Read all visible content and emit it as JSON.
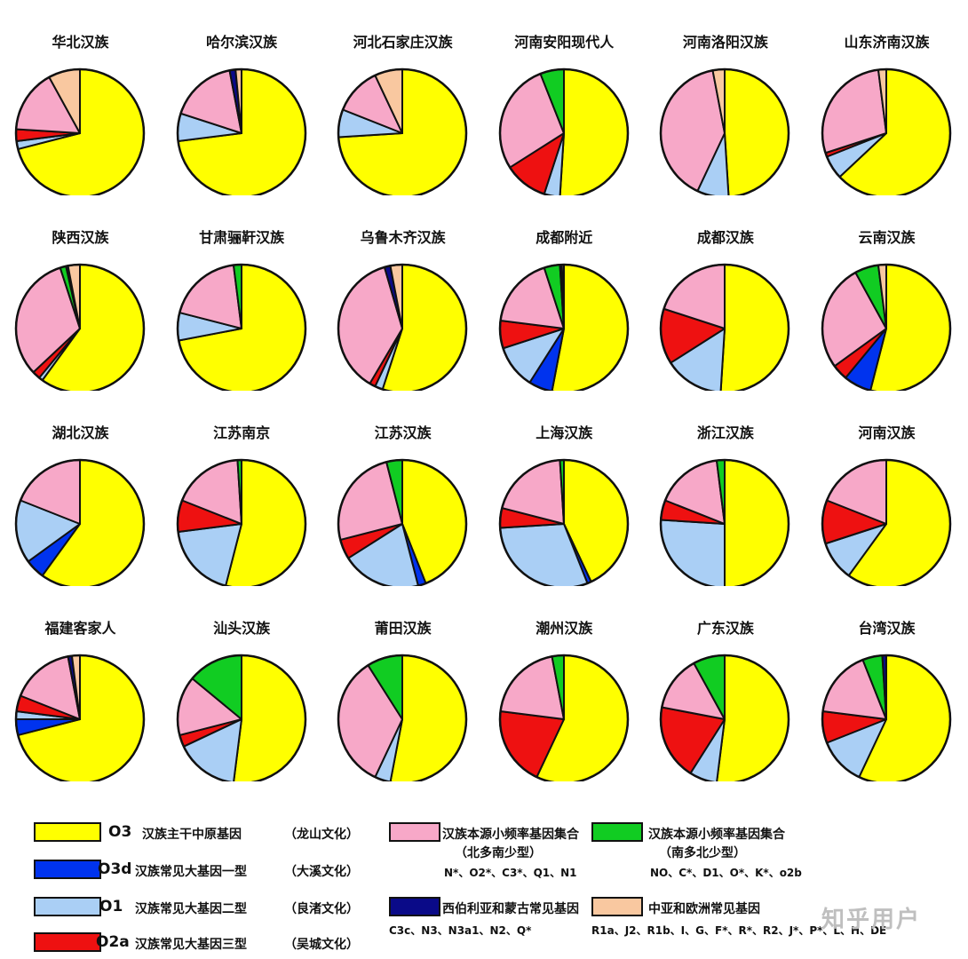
{
  "colors": {
    "O3": "#ffff00",
    "O3d": "#0033ee",
    "O1": "#aacff5",
    "O2a": "#ee1111",
    "pink": "#f7a8c8",
    "green": "#11cc22",
    "navy": "#0a0a88",
    "peach": "#f9c8a0"
  },
  "chart_data": {
    "type": "pie",
    "order": [
      "O3",
      "O3d",
      "O1",
      "O2a",
      "pink",
      "green",
      "navy",
      "peach"
    ],
    "charts": [
      {
        "title": "华北汉族",
        "values": {
          "O3": 71,
          "O1": 2,
          "O2a": 3,
          "pink": 16,
          "peach": 8
        }
      },
      {
        "title": "哈尔滨汉族",
        "values": {
          "O3": 73,
          "O1": 7,
          "pink": 17,
          "navy": 1.5,
          "peach": 1.5
        }
      },
      {
        "title": "河北石家庄汉族",
        "values": {
          "O3": 74,
          "O1": 7,
          "pink": 12,
          "peach": 7
        }
      },
      {
        "title": "河南安阳现代人",
        "values": {
          "O3": 51,
          "O1": 4,
          "O2a": 11,
          "pink": 28,
          "green": 6
        }
      },
      {
        "title": "河南洛阳汉族",
        "values": {
          "O3": 49,
          "O1": 8,
          "pink": 40,
          "peach": 3
        }
      },
      {
        "title": "山东济南汉族",
        "values": {
          "O3": 63,
          "O1": 6,
          "O2a": 1,
          "pink": 28,
          "peach": 2
        }
      },
      {
        "title": "陕西汉族",
        "values": {
          "O3": 60,
          "O1": 1,
          "O2a": 2,
          "pink": 32,
          "green": 1.5,
          "navy": 0.5,
          "peach": 3
        }
      },
      {
        "title": "甘肃骊靬汉族",
        "values": {
          "O3": 72,
          "O1": 7,
          "pink": 19,
          "green": 2
        }
      },
      {
        "title": "乌鲁木齐汉族",
        "values": {
          "O3": 55,
          "O1": 2,
          "O2a": 1.5,
          "pink": 37,
          "navy": 1.5,
          "peach": 3
        }
      },
      {
        "title": "成都附近",
        "values": {
          "O3": 53,
          "O3d": 6,
          "O1": 11,
          "O2a": 7,
          "pink": 18,
          "green": 4,
          "navy": 0.5,
          "peach": 0.5
        }
      },
      {
        "title": "成都汉族",
        "values": {
          "O3": 51,
          "O1": 15,
          "O2a": 14,
          "pink": 20
        }
      },
      {
        "title": "云南汉族",
        "values": {
          "O3": 54,
          "O3d": 7,
          "O2a": 4,
          "pink": 27,
          "green": 6,
          "peach": 2
        }
      },
      {
        "title": "湖北汉族",
        "values": {
          "O3": 60,
          "O3d": 5,
          "O1": 16,
          "pink": 19
        }
      },
      {
        "title": "江苏南京",
        "values": {
          "O3": 54,
          "O1": 19,
          "O2a": 8,
          "pink": 18,
          "green": 1
        }
      },
      {
        "title": "江苏汉族",
        "values": {
          "O3": 44,
          "O3d": 2,
          "O1": 20,
          "O2a": 5,
          "pink": 25,
          "green": 4
        }
      },
      {
        "title": "上海汉族",
        "values": {
          "O3": 43,
          "O3d": 1,
          "O1": 30,
          "O2a": 5,
          "pink": 20,
          "green": 1
        }
      },
      {
        "title": "浙江汉族",
        "values": {
          "O3": 50,
          "O1": 26,
          "O2a": 5,
          "pink": 17,
          "green": 2
        }
      },
      {
        "title": "河南汉族",
        "values": {
          "O3": 60,
          "O1": 10,
          "O2a": 11,
          "pink": 19
        }
      },
      {
        "title": "福建客家人",
        "values": {
          "O3": 71,
          "O3d": 4,
          "O1": 2,
          "O2a": 4,
          "pink": 16,
          "navy": 1,
          "peach": 2
        }
      },
      {
        "title": "汕头汉族",
        "values": {
          "O3": 52,
          "O1": 16,
          "O2a": 3,
          "pink": 15,
          "green": 14
        }
      },
      {
        "title": "莆田汉族",
        "values": {
          "O3": 53,
          "O1": 4,
          "pink": 34,
          "green": 9
        }
      },
      {
        "title": "潮州汉族",
        "values": {
          "O3": 57,
          "O2a": 20,
          "pink": 20,
          "green": 3
        }
      },
      {
        "title": "广东汉族",
        "values": {
          "O3": 52,
          "O1": 7,
          "O2a": 19,
          "pink": 14,
          "green": 8
        }
      },
      {
        "title": "台湾汉族",
        "values": {
          "O3": 57,
          "O1": 12,
          "O2a": 8,
          "pink": 17,
          "green": 5,
          "navy": 1
        }
      }
    ]
  },
  "legend": {
    "O3": {
      "code": "O3",
      "desc": "汉族主干中原基因",
      "culture": "（龙山文化）"
    },
    "O3d": {
      "code": "O3d",
      "desc": "汉族常见大基因一型",
      "culture": "（大溪文化）"
    },
    "O1": {
      "code": "O1",
      "desc": "汉族常见大基因二型",
      "culture": "（良渚文化）"
    },
    "O2a": {
      "code": "O2a",
      "desc": "汉族常见大基因三型",
      "culture": "（吴城文化）"
    },
    "pink": {
      "label": "汉族本源小频率基因集合",
      "sub": "（北多南少型）",
      "haplos": "N*、O2*、C3*、Q1、N1"
    },
    "green": {
      "label": "汉族本源小频率基因集合",
      "sub": "（南多北少型）",
      "haplos": "NO、C*、D1、O*、K*、o2b"
    },
    "navy": {
      "label": "西伯利亚和蒙古常见基因",
      "haplos": "C3c、N3、N3a1、N2、Q*"
    },
    "peach": {
      "label": "中亚和欧洲常见基因",
      "haplos": "R1a、J2、R1b、I、G、F*、R*、R2、J*、P*、L、H、DE"
    }
  },
  "watermark": "知乎用户"
}
